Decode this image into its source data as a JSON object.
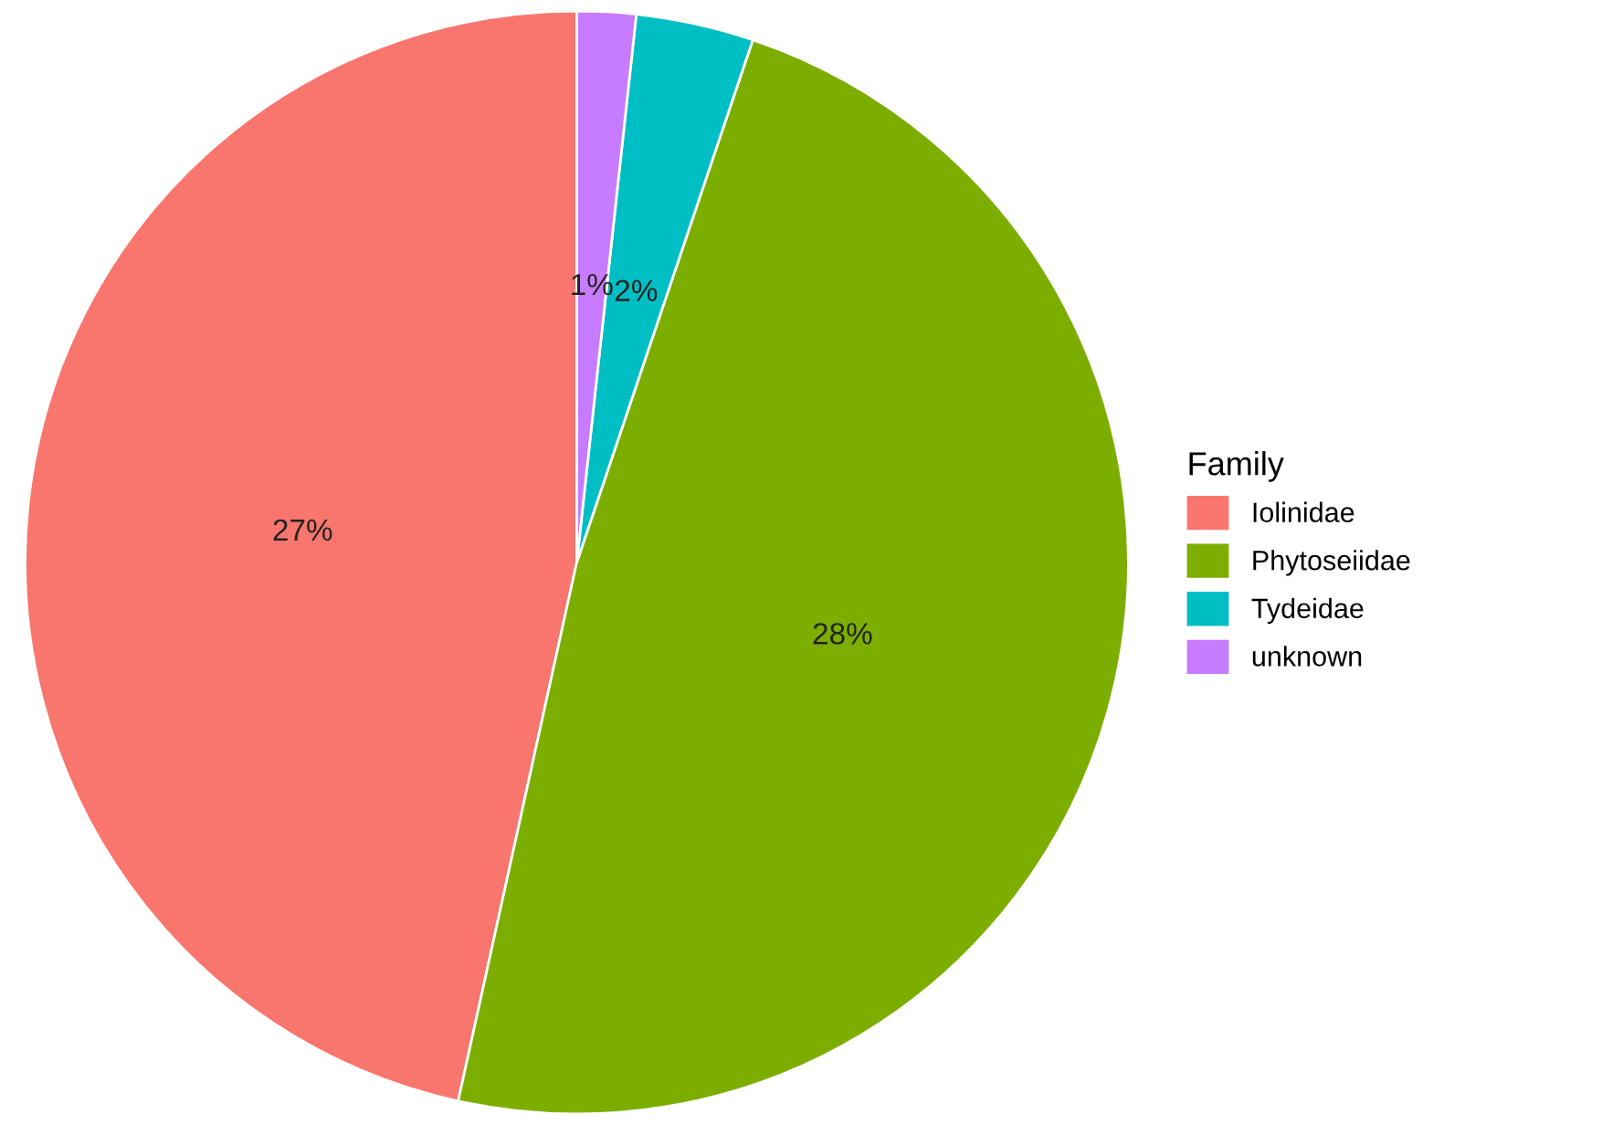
{
  "chart_data": {
    "type": "pie",
    "legend_title": "Family",
    "categories": [
      "Iolinidae",
      "Phytoseiidae",
      "Tydeidae",
      "unknown"
    ],
    "values": [
      27,
      28,
      2,
      1
    ],
    "value_labels": [
      "27%",
      "28%",
      "2%",
      "1%"
    ],
    "colors": [
      "#f8766d",
      "#7cae00",
      "#00bfc4",
      "#c77cff"
    ],
    "legend": "right"
  }
}
